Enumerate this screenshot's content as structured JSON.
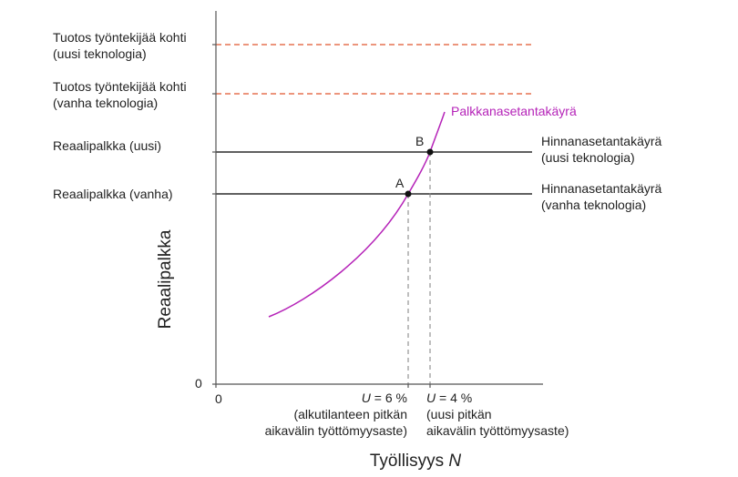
{
  "colors": {
    "axis": "#555555",
    "price_line": "#2b2b2b",
    "output_line": "#e0562e",
    "wage_curve": "#b523b8",
    "guide_line": "#888888",
    "point": "#111111",
    "text": "#222222"
  },
  "axes": {
    "y_title": "Reaalipalkka",
    "x_title_text": "Työllisyys ",
    "x_title_var": "N",
    "y_zero": "0",
    "x_zero": "0"
  },
  "left_labels": {
    "output_new_1": "Tuotos työntekijää kohti",
    "output_new_2": "(uusi teknologia)",
    "output_old_1": "Tuotos työntekijää kohti",
    "output_old_2": "(vanha teknologia)",
    "wage_new": "Reaalipalkka (uusi)",
    "wage_old": "Reaalipalkka (vanha)"
  },
  "right_labels": {
    "wage_curve": "Palkkanasetantakäyrä",
    "price_new_1": "Hinnanasetantakäyrä",
    "price_new_2": "(uusi teknologia)",
    "price_old_1": "Hinnanasetantakäyrä",
    "price_old_2": "(vanha teknologia)"
  },
  "points": {
    "a": "A",
    "b": "B"
  },
  "x_annotations": {
    "a_var": "U",
    "a_val": " = 6 %",
    "a_line2": "(alkutilanteen pitkän",
    "a_line3": "aikavälin työttömyysaste)",
    "b_var": "U",
    "b_val": " = 4 %",
    "b_line2": "(uusi pitkän",
    "b_line3": "aikavälin työttömyysaste)"
  }
}
